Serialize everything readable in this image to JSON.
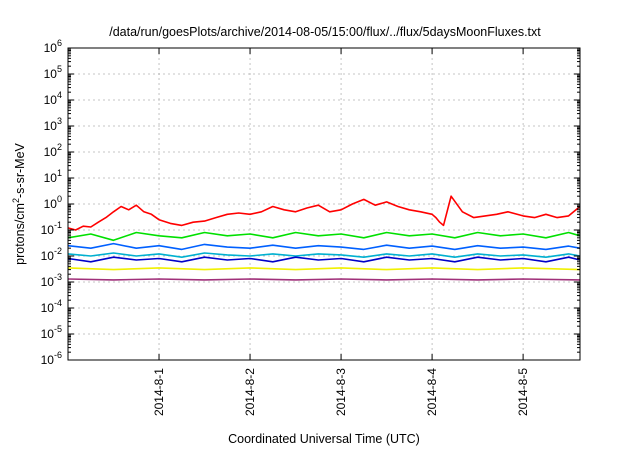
{
  "chart_data": {
    "type": "line",
    "title": "/data/run/goesPlots/archive/2014-08-05/15:00/flux/../flux/5daysMoonFluxes.txt",
    "xlabel": "Coordinated Universal Time (UTC)",
    "ylabel_parts": {
      "base": "protons/cm",
      "sup": "2",
      "rest": "-s-sr-MeV"
    },
    "yscale": "log",
    "ylim": [
      1e-06,
      1000000.0
    ],
    "xlim": [
      "2014-07-31T00:00",
      "2014-08-05T15:00"
    ],
    "grid": true,
    "y_ticks": [
      {
        "value": 1e-06,
        "base": "10",
        "exp": "-6"
      },
      {
        "value": 1e-05,
        "base": "10",
        "exp": "-5"
      },
      {
        "value": 0.0001,
        "base": "10",
        "exp": "-4"
      },
      {
        "value": 0.001,
        "base": "10",
        "exp": "-3"
      },
      {
        "value": 0.01,
        "base": "10",
        "exp": "-2"
      },
      {
        "value": 0.1,
        "base": "10",
        "exp": "-1"
      },
      {
        "value": 1.0,
        "base": "10",
        "exp": "0"
      },
      {
        "value": 10.0,
        "base": "10",
        "exp": "1"
      },
      {
        "value": 100.0,
        "base": "10",
        "exp": "2"
      },
      {
        "value": 1000.0,
        "base": "10",
        "exp": "3"
      },
      {
        "value": 10000.0,
        "base": "10",
        "exp": "4"
      },
      {
        "value": 100000.0,
        "base": "10",
        "exp": "5"
      },
      {
        "value": 1000000.0,
        "base": "10",
        "exp": "6"
      }
    ],
    "x_ticks": [
      {
        "value": "2014-08-01T00:00",
        "label": "2014-8-1"
      },
      {
        "value": "2014-08-02T00:00",
        "label": "2014-8-2"
      },
      {
        "value": "2014-08-03T00:00",
        "label": "2014-8-3"
      },
      {
        "value": "2014-08-04T00:00",
        "label": "2014-8-4"
      },
      {
        "value": "2014-08-05T00:00",
        "label": "2014-8-5"
      }
    ],
    "series": [
      {
        "color": "#ff0000",
        "x": [
          "2014-07-31T00:00",
          "2014-07-31T02:00",
          "2014-07-31T04:00",
          "2014-07-31T06:00",
          "2014-07-31T08:00",
          "2014-07-31T10:00",
          "2014-07-31T12:00",
          "2014-07-31T14:00",
          "2014-07-31T16:00",
          "2014-07-31T18:00",
          "2014-07-31T20:00",
          "2014-07-31T22:00",
          "2014-08-01T00:00",
          "2014-08-01T03:00",
          "2014-08-01T06:00",
          "2014-08-01T09:00",
          "2014-08-01T12:00",
          "2014-08-01T15:00",
          "2014-08-01T18:00",
          "2014-08-01T21:00",
          "2014-08-02T00:00",
          "2014-08-02T03:00",
          "2014-08-02T06:00",
          "2014-08-02T09:00",
          "2014-08-02T12:00",
          "2014-08-02T15:00",
          "2014-08-02T18:00",
          "2014-08-02T21:00",
          "2014-08-03T00:00",
          "2014-08-03T03:00",
          "2014-08-03T06:00",
          "2014-08-03T09:00",
          "2014-08-03T12:00",
          "2014-08-03T15:00",
          "2014-08-03T18:00",
          "2014-08-03T21:00",
          "2014-08-04T00:00",
          "2014-08-04T01:00",
          "2014-08-04T02:00",
          "2014-08-04T03:00",
          "2014-08-04T05:00",
          "2014-08-04T08:00",
          "2014-08-04T11:00",
          "2014-08-04T14:00",
          "2014-08-04T17:00",
          "2014-08-04T20:00",
          "2014-08-05T00:00",
          "2014-08-05T03:00",
          "2014-08-05T06:00",
          "2014-08-05T09:00",
          "2014-08-05T12:00",
          "2014-08-05T15:00"
        ],
        "values": [
          0.12,
          0.1,
          0.14,
          0.13,
          0.2,
          0.3,
          0.5,
          0.8,
          0.6,
          0.9,
          0.5,
          0.4,
          0.25,
          0.18,
          0.15,
          0.2,
          0.22,
          0.3,
          0.4,
          0.45,
          0.4,
          0.5,
          0.8,
          0.6,
          0.5,
          0.7,
          0.9,
          0.5,
          0.6,
          1.0,
          1.5,
          0.9,
          1.2,
          0.8,
          0.6,
          0.5,
          0.4,
          0.3,
          0.2,
          0.15,
          2.0,
          0.5,
          0.3,
          0.35,
          0.4,
          0.5,
          0.35,
          0.3,
          0.4,
          0.3,
          0.35,
          0.8
        ]
      },
      {
        "color": "#00e000",
        "x": [
          "2014-07-31T00:00",
          "2014-07-31T06:00",
          "2014-07-31T12:00",
          "2014-07-31T18:00",
          "2014-08-01T00:00",
          "2014-08-01T06:00",
          "2014-08-01T12:00",
          "2014-08-01T18:00",
          "2014-08-02T00:00",
          "2014-08-02T06:00",
          "2014-08-02T12:00",
          "2014-08-02T18:00",
          "2014-08-03T00:00",
          "2014-08-03T06:00",
          "2014-08-03T12:00",
          "2014-08-03T18:00",
          "2014-08-04T00:00",
          "2014-08-04T06:00",
          "2014-08-04T12:00",
          "2014-08-04T18:00",
          "2014-08-05T00:00",
          "2014-08-05T06:00",
          "2014-08-05T12:00",
          "2014-08-05T15:00"
        ],
        "values": [
          0.05,
          0.07,
          0.04,
          0.08,
          0.06,
          0.05,
          0.08,
          0.06,
          0.07,
          0.05,
          0.08,
          0.06,
          0.07,
          0.05,
          0.08,
          0.06,
          0.07,
          0.05,
          0.08,
          0.06,
          0.07,
          0.05,
          0.08,
          0.06
        ]
      },
      {
        "color": "#0060ff",
        "x": [
          "2014-07-31T00:00",
          "2014-07-31T06:00",
          "2014-07-31T12:00",
          "2014-07-31T18:00",
          "2014-08-01T00:00",
          "2014-08-01T06:00",
          "2014-08-01T12:00",
          "2014-08-01T18:00",
          "2014-08-02T00:00",
          "2014-08-02T06:00",
          "2014-08-02T12:00",
          "2014-08-02T18:00",
          "2014-08-03T00:00",
          "2014-08-03T06:00",
          "2014-08-03T12:00",
          "2014-08-03T18:00",
          "2014-08-04T00:00",
          "2014-08-04T06:00",
          "2014-08-04T12:00",
          "2014-08-04T18:00",
          "2014-08-05T00:00",
          "2014-08-05T06:00",
          "2014-08-05T12:00",
          "2014-08-05T15:00"
        ],
        "values": [
          0.025,
          0.02,
          0.03,
          0.02,
          0.025,
          0.018,
          0.028,
          0.022,
          0.02,
          0.026,
          0.02,
          0.025,
          0.022,
          0.018,
          0.026,
          0.02,
          0.024,
          0.018,
          0.025,
          0.02,
          0.022,
          0.018,
          0.024,
          0.02
        ]
      },
      {
        "color": "#00b0d0",
        "x": [
          "2014-07-31T00:00",
          "2014-07-31T06:00",
          "2014-07-31T12:00",
          "2014-07-31T18:00",
          "2014-08-01T00:00",
          "2014-08-01T06:00",
          "2014-08-01T12:00",
          "2014-08-01T18:00",
          "2014-08-02T00:00",
          "2014-08-02T06:00",
          "2014-08-02T12:00",
          "2014-08-02T18:00",
          "2014-08-03T00:00",
          "2014-08-03T06:00",
          "2014-08-03T12:00",
          "2014-08-03T18:00",
          "2014-08-04T00:00",
          "2014-08-04T06:00",
          "2014-08-04T12:00",
          "2014-08-04T18:00",
          "2014-08-05T00:00",
          "2014-08-05T06:00",
          "2014-08-05T12:00",
          "2014-08-05T15:00"
        ],
        "values": [
          0.012,
          0.01,
          0.013,
          0.01,
          0.012,
          0.009,
          0.013,
          0.011,
          0.01,
          0.012,
          0.01,
          0.012,
          0.011,
          0.009,
          0.012,
          0.01,
          0.012,
          0.009,
          0.012,
          0.01,
          0.011,
          0.009,
          0.012,
          0.01
        ]
      },
      {
        "color": "#0000c8",
        "x": [
          "2014-07-31T00:00",
          "2014-07-31T06:00",
          "2014-07-31T12:00",
          "2014-07-31T18:00",
          "2014-08-01T00:00",
          "2014-08-01T06:00",
          "2014-08-01T12:00",
          "2014-08-01T18:00",
          "2014-08-02T00:00",
          "2014-08-02T06:00",
          "2014-08-02T12:00",
          "2014-08-02T18:00",
          "2014-08-03T00:00",
          "2014-08-03T06:00",
          "2014-08-03T12:00",
          "2014-08-03T18:00",
          "2014-08-04T00:00",
          "2014-08-04T06:00",
          "2014-08-04T12:00",
          "2014-08-04T18:00",
          "2014-08-05T00:00",
          "2014-08-05T06:00",
          "2014-08-05T12:00",
          "2014-08-05T15:00"
        ],
        "values": [
          0.008,
          0.006,
          0.009,
          0.007,
          0.008,
          0.006,
          0.009,
          0.007,
          0.008,
          0.006,
          0.009,
          0.007,
          0.008,
          0.006,
          0.009,
          0.007,
          0.008,
          0.006,
          0.009,
          0.007,
          0.008,
          0.006,
          0.009,
          0.007
        ]
      },
      {
        "color": "#f0f000",
        "x": [
          "2014-07-31T00:00",
          "2014-07-31T12:00",
          "2014-08-01T00:00",
          "2014-08-01T12:00",
          "2014-08-02T00:00",
          "2014-08-02T12:00",
          "2014-08-03T00:00",
          "2014-08-03T12:00",
          "2014-08-04T00:00",
          "2014-08-04T12:00",
          "2014-08-05T00:00",
          "2014-08-05T15:00"
        ],
        "values": [
          0.0035,
          0.003,
          0.0035,
          0.003,
          0.0035,
          0.003,
          0.0035,
          0.003,
          0.0035,
          0.003,
          0.0035,
          0.003
        ]
      },
      {
        "color": "#a0307a",
        "x": [
          "2014-07-31T00:00",
          "2014-07-31T12:00",
          "2014-08-01T00:00",
          "2014-08-01T12:00",
          "2014-08-02T00:00",
          "2014-08-02T12:00",
          "2014-08-03T00:00",
          "2014-08-03T12:00",
          "2014-08-04T00:00",
          "2014-08-04T12:00",
          "2014-08-05T00:00",
          "2014-08-05T15:00"
        ],
        "values": [
          0.0013,
          0.0012,
          0.0013,
          0.0012,
          0.0013,
          0.0012,
          0.0013,
          0.0012,
          0.0013,
          0.0012,
          0.0013,
          0.0012
        ]
      }
    ]
  }
}
